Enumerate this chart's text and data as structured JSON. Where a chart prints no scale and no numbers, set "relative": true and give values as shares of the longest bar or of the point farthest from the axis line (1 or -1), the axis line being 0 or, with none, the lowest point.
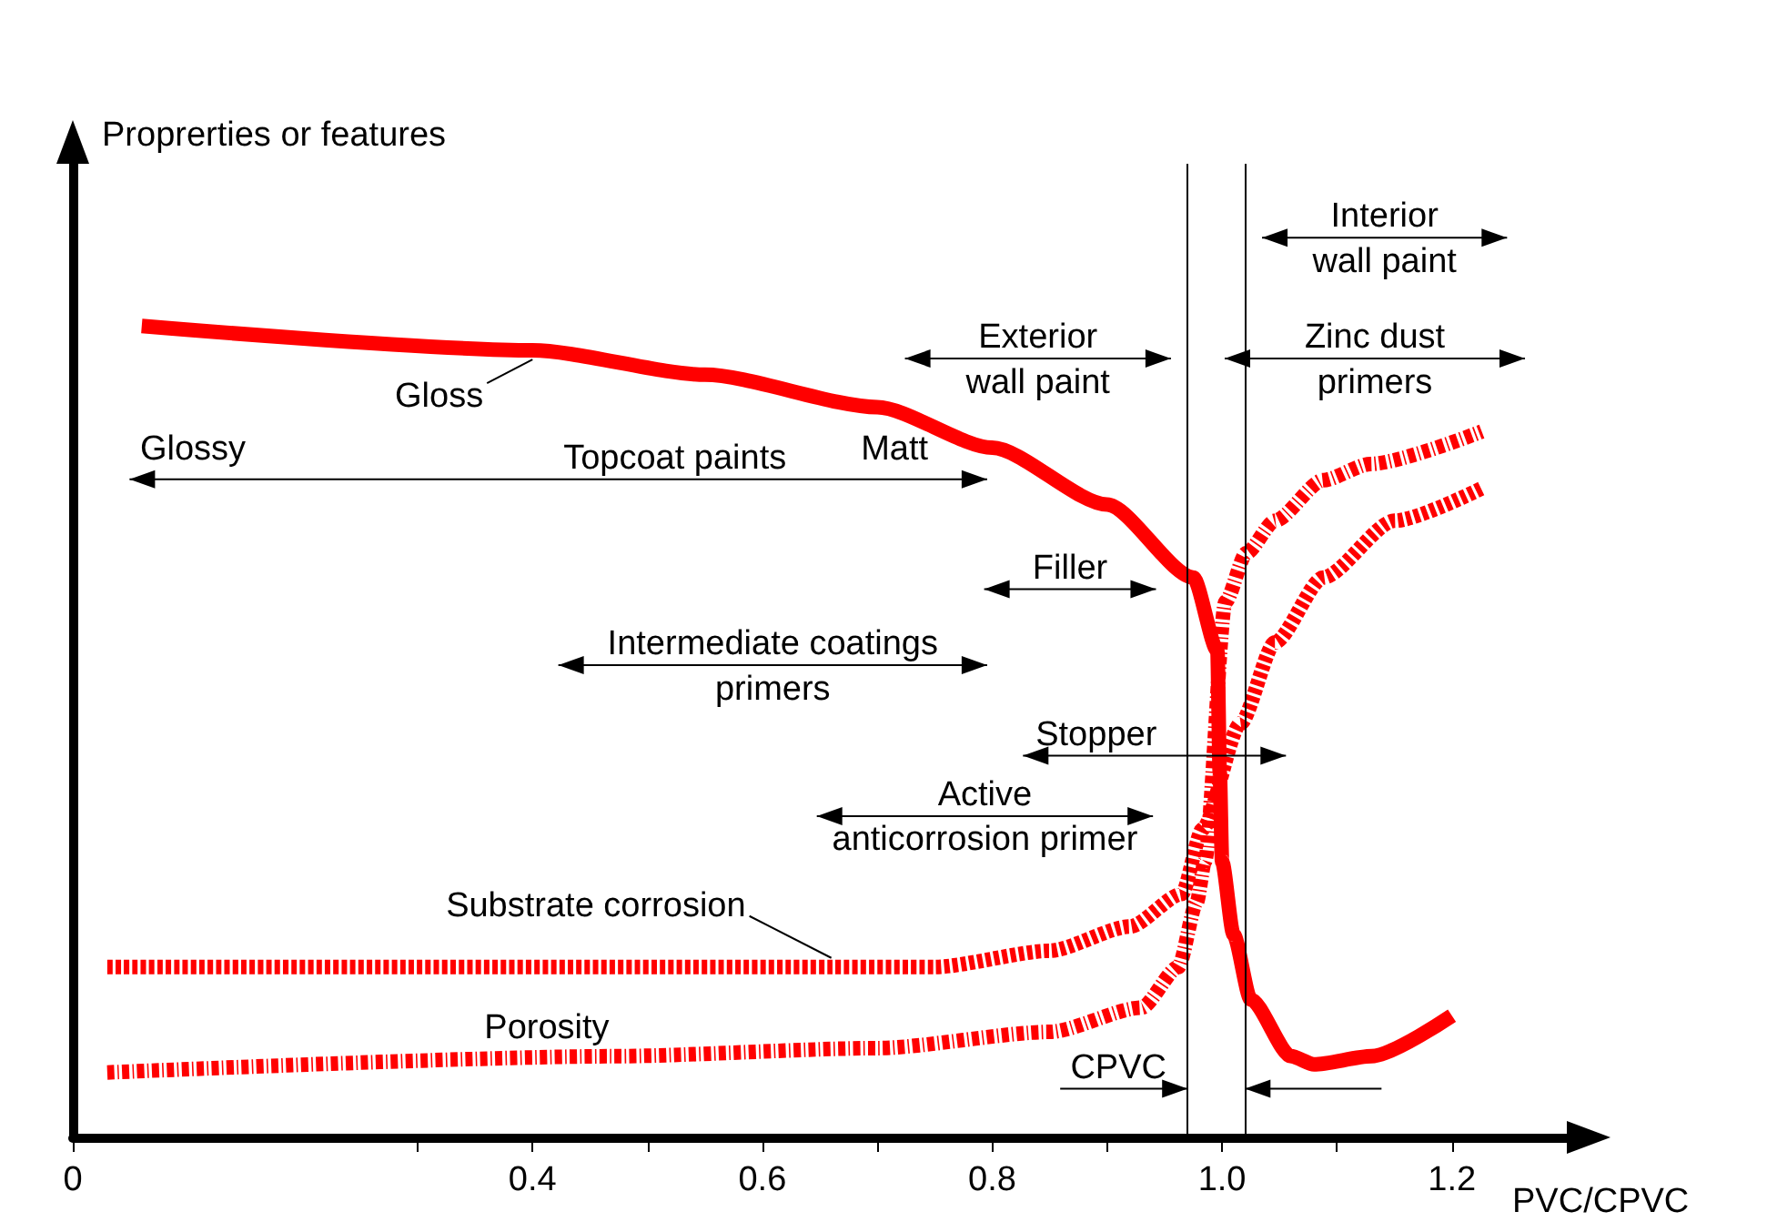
{
  "chart_data": {
    "type": "line",
    "relative": true,
    "xlabel": "PVC/CPVC",
    "ylabel": "Proprerties or features",
    "xlim": [
      0,
      1.3
    ],
    "xticks": [
      {
        "value": 0,
        "label": "0"
      },
      {
        "value": 0.3,
        "label": null
      },
      0.4,
      {
        "value": 0.5,
        "label": null
      },
      0.6,
      {
        "value": 0.7,
        "label": null
      },
      0.8,
      {
        "value": 0.9,
        "label": null
      },
      {
        "value": 1,
        "label": "1.0"
      },
      {
        "value": 1.1,
        "label": null
      },
      1.2
    ],
    "legend": false,
    "marker": "none",
    "series": [
      {
        "name": "Gloss",
        "color": "#ff0000",
        "line_style": "solid",
        "x": [
          0.06,
          0.4,
          0.55,
          0.7,
          0.8,
          0.9,
          0.975,
          0.996,
          0.998,
          1.0,
          1.01,
          1.025,
          1.06,
          1.08,
          1.13,
          1.2
        ],
        "values": [
          1.0,
          0.97,
          0.94,
          0.9,
          0.85,
          0.78,
          0.69,
          0.6,
          0.45,
          0.34,
          0.25,
          0.17,
          0.1,
          0.09,
          0.1,
          0.15
        ]
      },
      {
        "name": "Substrate corrosion",
        "color": "#ff0000",
        "line_style": "dashed",
        "x": [
          0.03,
          0.66,
          0.75,
          0.85,
          0.92,
          0.965,
          0.983,
          1.016,
          1.046,
          1.088,
          1.15,
          1.226
        ],
        "values": [
          0.21,
          0.21,
          0.21,
          0.23,
          0.26,
          0.3,
          0.38,
          0.51,
          0.61,
          0.69,
          0.76,
          0.8
        ]
      },
      {
        "name": "Porosity",
        "color": "#ff0000",
        "line_style": "dashdot",
        "x": [
          0.03,
          0.47,
          0.7,
          0.85,
          0.93,
          0.962,
          0.978,
          0.985,
          1.003,
          1.021,
          1.046,
          1.088,
          1.129,
          1.226
        ],
        "values": [
          0.08,
          0.1,
          0.11,
          0.13,
          0.16,
          0.21,
          0.29,
          0.34,
          0.66,
          0.72,
          0.76,
          0.81,
          0.83,
          0.87
        ]
      }
    ],
    "ref_lines": [
      {
        "axis": "x",
        "value": 0.97,
        "label": "CPVC"
      },
      {
        "axis": "x",
        "value": 1.02,
        "label": null
      }
    ],
    "annotations": [
      "Glossy",
      "Topcoat paints",
      "Matt",
      "Exterior wall paint",
      "Interior wall paint",
      "Zinc dust primers",
      "Filler",
      "Intermediate coatings primers",
      "Stopper",
      "Active anticorrosion primer"
    ]
  }
}
